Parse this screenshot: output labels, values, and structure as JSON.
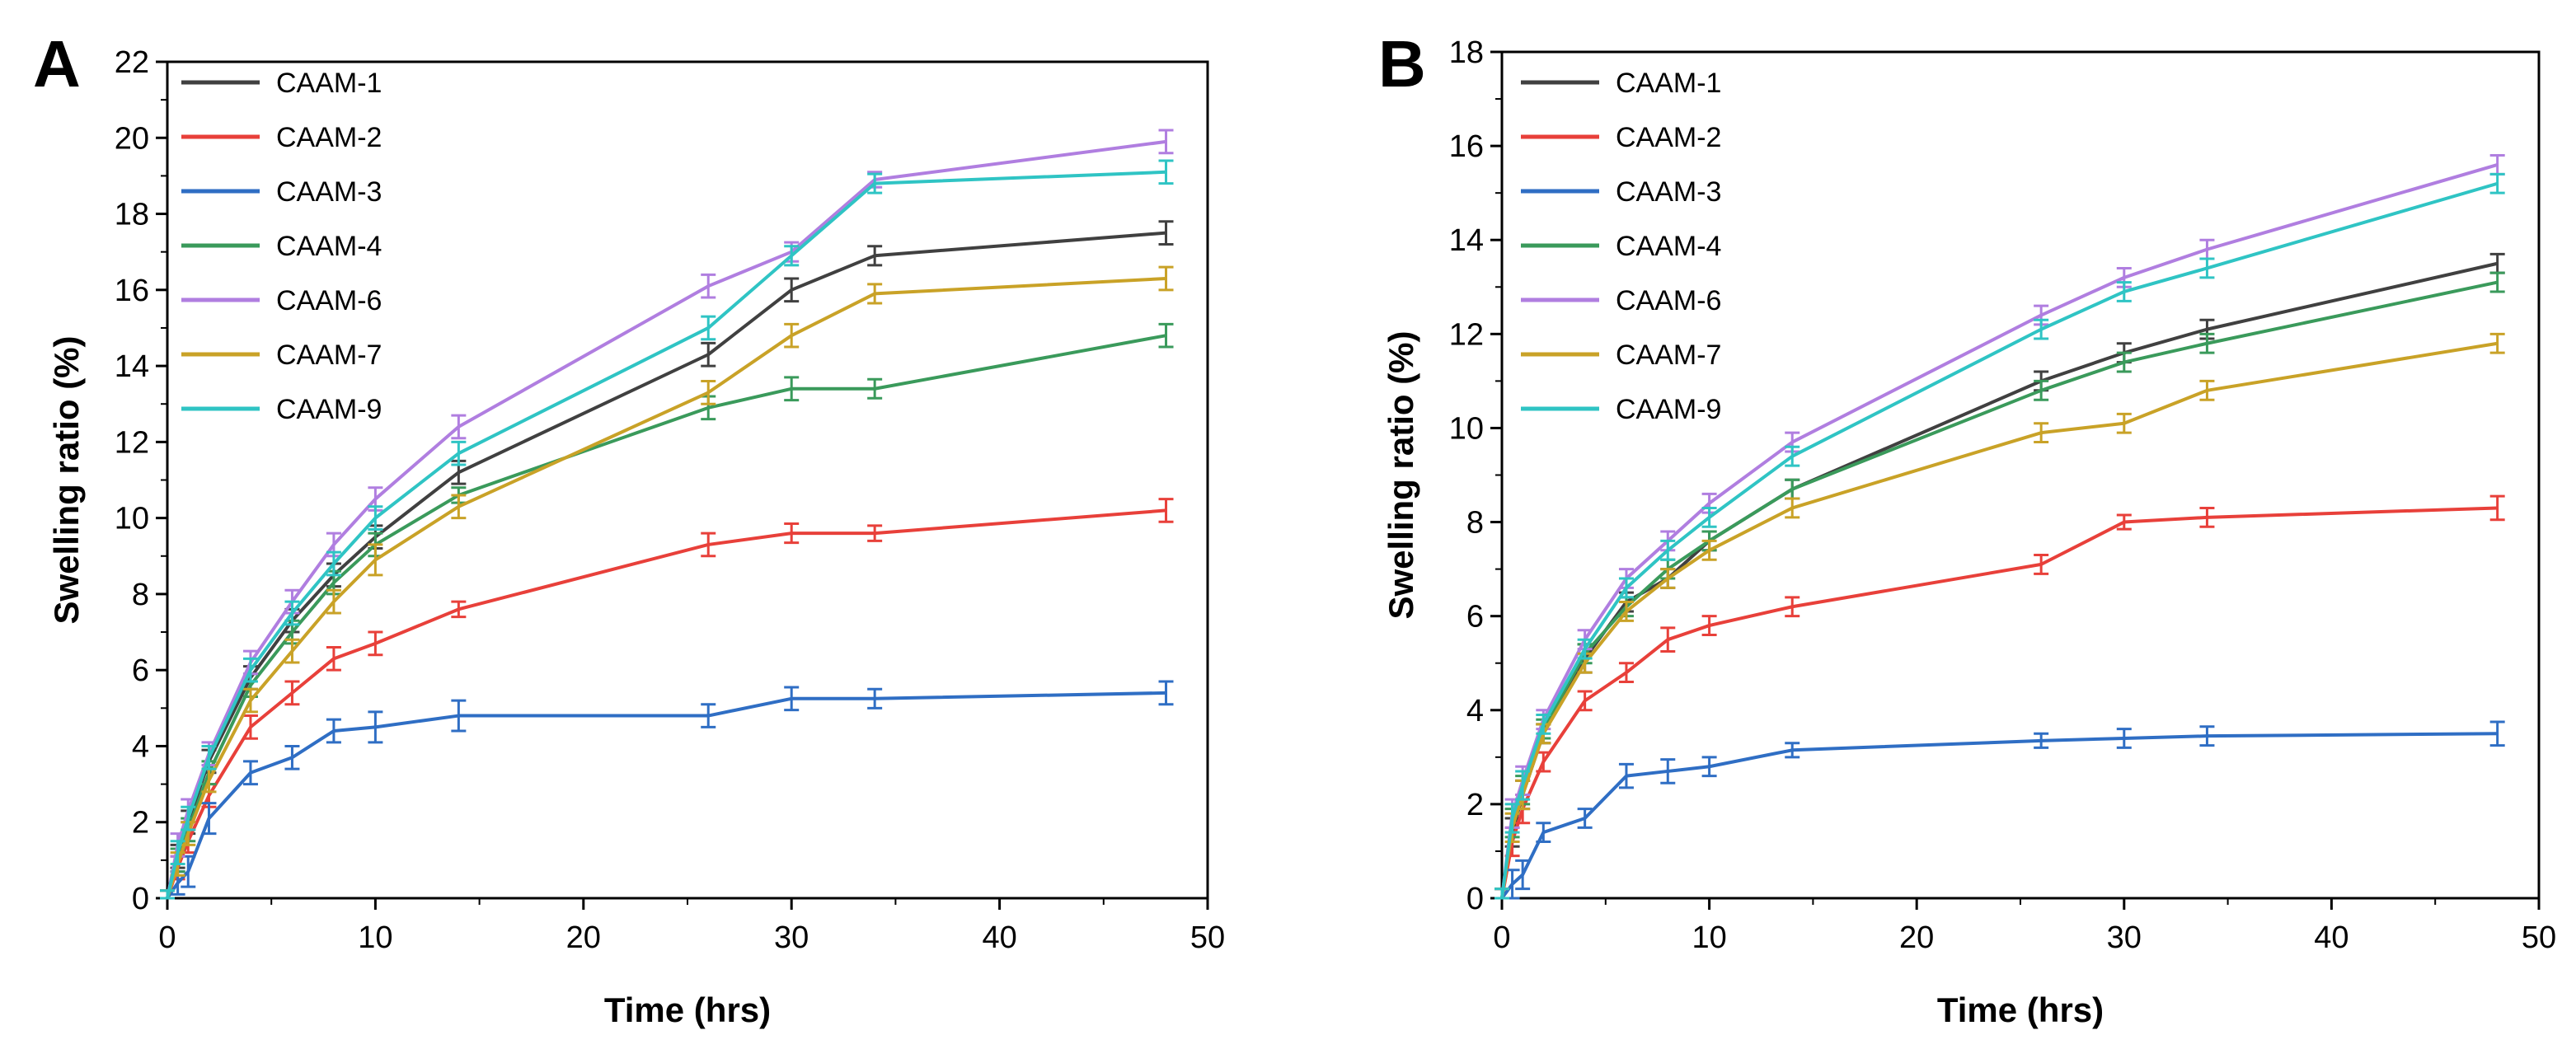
{
  "chart_data": [
    {
      "panel": "A",
      "type": "line",
      "xlabel": "Time (hrs)",
      "ylabel": "Swelling ratio (%)",
      "xlim": [
        0,
        50
      ],
      "ylim": [
        0,
        22
      ],
      "xticks": [
        0,
        10,
        20,
        30,
        40,
        50
      ],
      "yticks": [
        0,
        2,
        4,
        6,
        8,
        10,
        12,
        14,
        16,
        18,
        20,
        22
      ],
      "x": [
        0,
        0.5,
        1,
        2,
        4,
        6,
        8,
        10,
        14,
        26,
        30,
        34,
        48
      ],
      "legend_position": "top-left",
      "grid": false,
      "series": [
        {
          "name": "CAAM-1",
          "color": "#404040",
          "values": [
            0,
            1.1,
            2.0,
            3.6,
            5.8,
            7.3,
            8.5,
            9.5,
            11.2,
            14.3,
            16.0,
            16.9,
            17.5
          ],
          "errors": [
            0.2,
            0.3,
            0.3,
            0.3,
            0.3,
            0.3,
            0.3,
            0.3,
            0.3,
            0.3,
            0.3,
            0.25,
            0.3
          ]
        },
        {
          "name": "CAAM-2",
          "color": "#e8403a",
          "values": [
            0,
            0.8,
            1.5,
            2.7,
            4.5,
            5.4,
            6.3,
            6.7,
            7.6,
            9.3,
            9.6,
            9.6,
            10.2
          ],
          "errors": [
            0.2,
            0.3,
            0.3,
            0.3,
            0.3,
            0.3,
            0.3,
            0.3,
            0.2,
            0.3,
            0.25,
            0.2,
            0.3
          ]
        },
        {
          "name": "CAAM-3",
          "color": "#2f6ec4",
          "values": [
            0,
            0.4,
            0.7,
            2.1,
            3.3,
            3.7,
            4.4,
            4.5,
            4.8,
            4.8,
            5.25,
            5.25,
            5.4
          ],
          "errors": [
            0.2,
            0.3,
            0.4,
            0.4,
            0.3,
            0.3,
            0.3,
            0.4,
            0.4,
            0.3,
            0.3,
            0.25,
            0.3
          ]
        },
        {
          "name": "CAAM-4",
          "color": "#3a9a5b",
          "values": [
            0,
            1.0,
            1.8,
            3.3,
            5.6,
            7.0,
            8.3,
            9.3,
            10.6,
            12.9,
            13.4,
            13.4,
            14.8
          ],
          "errors": [
            0.2,
            0.3,
            0.3,
            0.3,
            0.3,
            0.3,
            0.3,
            0.3,
            0.2,
            0.3,
            0.3,
            0.25,
            0.3
          ]
        },
        {
          "name": "CAAM-6",
          "color": "#b07ee0",
          "values": [
            0,
            1.4,
            2.3,
            3.8,
            6.2,
            7.8,
            9.3,
            10.5,
            12.4,
            16.1,
            17.0,
            18.9,
            19.9
          ],
          "errors": [
            0.2,
            0.3,
            0.3,
            0.3,
            0.3,
            0.3,
            0.3,
            0.3,
            0.3,
            0.3,
            0.25,
            0.2,
            0.3
          ]
        },
        {
          "name": "CAAM-7",
          "color": "#c9a227",
          "values": [
            0,
            0.9,
            1.7,
            3.1,
            5.2,
            6.5,
            7.8,
            8.9,
            10.3,
            13.3,
            14.8,
            15.9,
            16.3
          ],
          "errors": [
            0.2,
            0.3,
            0.3,
            0.3,
            0.3,
            0.3,
            0.3,
            0.4,
            0.3,
            0.3,
            0.3,
            0.25,
            0.3
          ]
        },
        {
          "name": "CAAM-9",
          "color": "#2fc4c4",
          "values": [
            0,
            1.2,
            2.1,
            3.7,
            6.0,
            7.5,
            8.8,
            10.0,
            11.7,
            15.0,
            16.9,
            18.8,
            19.1
          ],
          "errors": [
            0.2,
            0.3,
            0.3,
            0.3,
            0.3,
            0.3,
            0.3,
            0.3,
            0.3,
            0.3,
            0.25,
            0.25,
            0.3
          ]
        }
      ]
    },
    {
      "panel": "B",
      "type": "line",
      "xlabel": "Time (hrs)",
      "ylabel": "Swelling ratio (%)",
      "xlim": [
        0,
        50
      ],
      "ylim": [
        0,
        18
      ],
      "xticks": [
        0,
        10,
        20,
        30,
        40,
        50
      ],
      "yticks": [
        0,
        2,
        4,
        6,
        8,
        10,
        12,
        14,
        16,
        18
      ],
      "x": [
        0,
        0.5,
        1,
        2,
        4,
        6,
        8,
        10,
        14,
        26,
        30,
        34,
        48
      ],
      "legend_position": "top-left",
      "grid": false,
      "series": [
        {
          "name": "CAAM-1",
          "color": "#404040",
          "values": [
            0,
            1.4,
            2.2,
            3.5,
            5.1,
            6.3,
            6.8,
            7.6,
            8.7,
            11.0,
            11.6,
            12.1,
            13.5
          ],
          "errors": [
            0.2,
            0.3,
            0.3,
            0.2,
            0.3,
            0.2,
            0.2,
            0.2,
            0.2,
            0.2,
            0.2,
            0.2,
            0.2
          ]
        },
        {
          "name": "CAAM-2",
          "color": "#e8403a",
          "values": [
            0,
            1.2,
            1.9,
            2.9,
            4.2,
            4.8,
            5.5,
            5.8,
            6.2,
            7.1,
            8.0,
            8.1,
            8.3
          ],
          "errors": [
            0.2,
            0.3,
            0.3,
            0.2,
            0.2,
            0.2,
            0.25,
            0.2,
            0.2,
            0.2,
            0.15,
            0.2,
            0.25
          ]
        },
        {
          "name": "CAAM-3",
          "color": "#2f6ec4",
          "values": [
            0,
            0.3,
            0.5,
            1.4,
            1.7,
            2.6,
            2.7,
            2.8,
            3.15,
            3.35,
            3.4,
            3.45,
            3.5
          ],
          "errors": [
            0.2,
            0.3,
            0.3,
            0.2,
            0.2,
            0.25,
            0.25,
            0.2,
            0.15,
            0.15,
            0.2,
            0.2,
            0.25
          ]
        },
        {
          "name": "CAAM-4",
          "color": "#3a9a5b",
          "values": [
            0,
            1.6,
            2.3,
            3.6,
            5.2,
            6.2,
            7.0,
            7.6,
            8.7,
            10.8,
            11.4,
            11.8,
            13.1
          ],
          "errors": [
            0.2,
            0.3,
            0.3,
            0.2,
            0.2,
            0.2,
            0.2,
            0.2,
            0.2,
            0.2,
            0.2,
            0.2,
            0.2
          ]
        },
        {
          "name": "CAAM-6",
          "color": "#b07ee0",
          "values": [
            0,
            1.8,
            2.5,
            3.8,
            5.5,
            6.8,
            7.6,
            8.4,
            9.7,
            12.4,
            13.2,
            13.8,
            15.6
          ],
          "errors": [
            0.2,
            0.3,
            0.3,
            0.2,
            0.2,
            0.2,
            0.2,
            0.2,
            0.2,
            0.2,
            0.2,
            0.2,
            0.2
          ]
        },
        {
          "name": "CAAM-7",
          "color": "#c9a227",
          "values": [
            0,
            1.5,
            2.2,
            3.5,
            5.0,
            6.1,
            6.8,
            7.4,
            8.3,
            9.9,
            10.1,
            10.8,
            11.8
          ],
          "errors": [
            0.2,
            0.3,
            0.3,
            0.2,
            0.2,
            0.2,
            0.2,
            0.2,
            0.2,
            0.2,
            0.2,
            0.2,
            0.2
          ]
        },
        {
          "name": "CAAM-9",
          "color": "#2fc4c4",
          "values": [
            0,
            1.7,
            2.4,
            3.7,
            5.3,
            6.6,
            7.4,
            8.1,
            9.4,
            12.1,
            12.9,
            13.4,
            15.2
          ],
          "errors": [
            0.2,
            0.3,
            0.3,
            0.2,
            0.2,
            0.2,
            0.2,
            0.2,
            0.2,
            0.2,
            0.2,
            0.2,
            0.2
          ]
        }
      ]
    }
  ]
}
